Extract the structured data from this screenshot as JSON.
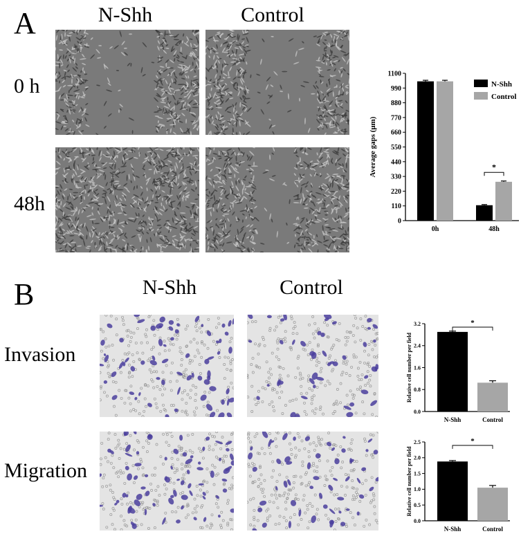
{
  "panel_a": {
    "letter": "A",
    "columns": [
      "N-Shh",
      "Control"
    ],
    "rows": [
      "0 h",
      "48h"
    ]
  },
  "panel_b": {
    "letter": "B",
    "columns": [
      "N-Shh",
      "Control"
    ],
    "rows": [
      "Invasion",
      "Migration"
    ]
  },
  "colors": {
    "nshh": "#000000",
    "control": "#a6a6a6",
    "stain": "#4b3f9e"
  },
  "chart_data": [
    {
      "type": "bar",
      "title": "",
      "xlabel": "",
      "ylabel": "Average gaps (μm)",
      "categories": [
        "0h",
        "48h"
      ],
      "ylim": [
        0,
        1100
      ],
      "yticks": [
        0,
        110,
        220,
        330,
        440,
        550,
        660,
        770,
        880,
        990,
        1100
      ],
      "series": [
        {
          "name": "N-Shh",
          "values": [
            1040,
            115
          ],
          "errors": [
            8,
            5
          ]
        },
        {
          "name": "Control",
          "values": [
            1040,
            290
          ],
          "errors": [
            8,
            6
          ]
        }
      ],
      "legend_position": "top-right",
      "annotations": [
        {
          "between": "48h",
          "text": "*"
        }
      ]
    },
    {
      "type": "bar",
      "title": "",
      "xlabel": "",
      "ylabel": "Relative cell number per field",
      "categories": [
        "N-Shh",
        "Control"
      ],
      "values": [
        2.9,
        1.05
      ],
      "errors": [
        0.03,
        0.07
      ],
      "ylim": [
        0,
        3.2
      ],
      "yticks": [
        "0.0",
        "0.8",
        "1.6",
        "2.4",
        "3.2"
      ],
      "annotations": [
        {
          "text": "*"
        }
      ]
    },
    {
      "type": "bar",
      "title": "",
      "xlabel": "",
      "ylabel": "Relative cell number per field",
      "categories": [
        "N-Shh",
        "Control"
      ],
      "values": [
        1.88,
        1.05
      ],
      "errors": [
        0.03,
        0.07
      ],
      "ylim": [
        0,
        2.5
      ],
      "yticks": [
        "0.0",
        "0.5",
        "1.0",
        "1.5",
        "2.0",
        "2.5"
      ],
      "annotations": [
        {
          "text": "*"
        }
      ]
    }
  ]
}
